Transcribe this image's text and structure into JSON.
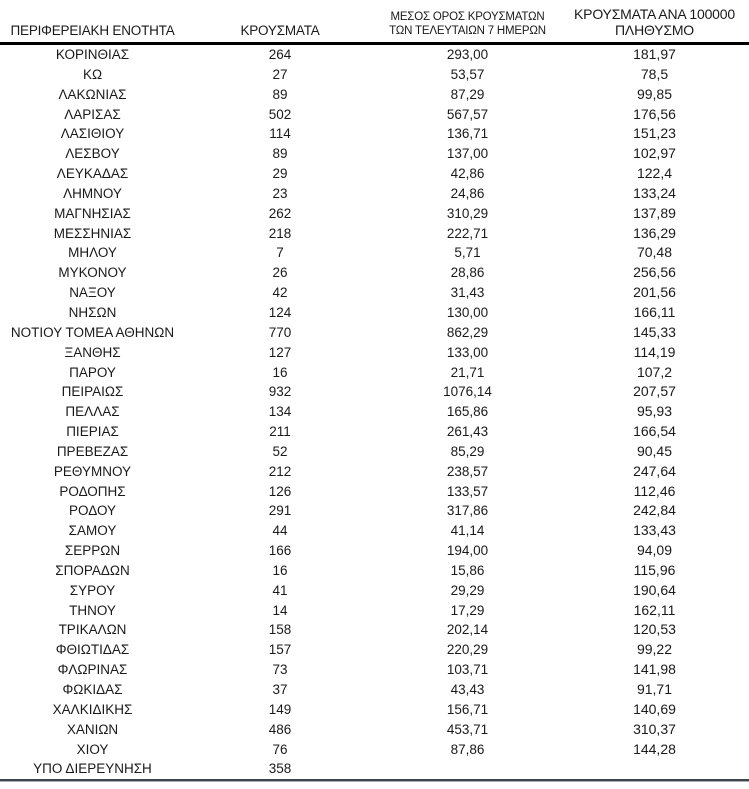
{
  "header": {
    "col1": "ΠΕΡΙΦΕΡΕΙΑΚΗ ΕΝΟΤΗΤΑ",
    "col2": "ΚΡΟΥΣΜΑΤΑ",
    "col3_line1": "ΜΕΣΟΣ ΟΡΟΣ ΚΡΟΥΣΜΑΤΩΝ",
    "col3_line2": "ΤΩΝ ΤΕΛΕΥΤΑΙΩΝ 7 ΗΜΕΡΩΝ",
    "col4_line1": "ΚΡΟΥΣΜΑΤΑ ΑΝΑ 100000",
    "col4_line2": "ΠΛΗΘΥΣΜΟ"
  },
  "chart_data": {
    "type": "table",
    "columns": [
      "ΠΕΡΙΦΕΡΕΙΑΚΗ ΕΝΟΤΗΤΑ",
      "ΚΡΟΥΣΜΑΤΑ",
      "ΜΕΣΟΣ ΟΡΟΣ ΚΡΟΥΣΜΑΤΩΝ ΤΩΝ ΤΕΛΕΥΤΑΙΩΝ 7 ΗΜΕΡΩΝ",
      "ΚΡΟΥΣΜΑΤΑ ΑΝΑ 100000 ΠΛΗΘΥΣΜΟ"
    ],
    "rows": [
      [
        "ΚΟΡΙΝΘΙΑΣ",
        "264",
        "293,00",
        "181,97"
      ],
      [
        "ΚΩ",
        "27",
        "53,57",
        "78,5"
      ],
      [
        "ΛΑΚΩΝΙΑΣ",
        "89",
        "87,29",
        "99,85"
      ],
      [
        "ΛΑΡΙΣΑΣ",
        "502",
        "567,57",
        "176,56"
      ],
      [
        "ΛΑΣΙΘΙΟΥ",
        "114",
        "136,71",
        "151,23"
      ],
      [
        "ΛΕΣΒΟΥ",
        "89",
        "137,00",
        "102,97"
      ],
      [
        "ΛΕΥΚΑΔΑΣ",
        "29",
        "42,86",
        "122,4"
      ],
      [
        "ΛΗΜΝΟΥ",
        "23",
        "24,86",
        "133,24"
      ],
      [
        "ΜΑΓΝΗΣΙΑΣ",
        "262",
        "310,29",
        "137,89"
      ],
      [
        "ΜΕΣΣΗΝΙΑΣ",
        "218",
        "222,71",
        "136,29"
      ],
      [
        "ΜΗΛΟΥ",
        "7",
        "5,71",
        "70,48"
      ],
      [
        "ΜΥΚΟΝΟΥ",
        "26",
        "28,86",
        "256,56"
      ],
      [
        "ΝΑΞΟΥ",
        "42",
        "31,43",
        "201,56"
      ],
      [
        "ΝΗΣΩΝ",
        "124",
        "130,00",
        "166,11"
      ],
      [
        "ΝΟΤΙΟΥ ΤΟΜΕΑ ΑΘΗΝΩΝ",
        "770",
        "862,29",
        "145,33"
      ],
      [
        "ΞΑΝΘΗΣ",
        "127",
        "133,00",
        "114,19"
      ],
      [
        "ΠΑΡΟΥ",
        "16",
        "21,71",
        "107,2"
      ],
      [
        "ΠΕΙΡΑΙΩΣ",
        "932",
        "1076,14",
        "207,57"
      ],
      [
        "ΠΕΛΛΑΣ",
        "134",
        "165,86",
        "95,93"
      ],
      [
        "ΠΙΕΡΙΑΣ",
        "211",
        "261,43",
        "166,54"
      ],
      [
        "ΠΡΕΒΕΖΑΣ",
        "52",
        "85,29",
        "90,45"
      ],
      [
        "ΡΕΘΥΜΝΟΥ",
        "212",
        "238,57",
        "247,64"
      ],
      [
        "ΡΟΔΟΠΗΣ",
        "126",
        "133,57",
        "112,46"
      ],
      [
        "ΡΟΔΟΥ",
        "291",
        "317,86",
        "242,84"
      ],
      [
        "ΣΑΜΟΥ",
        "44",
        "41,14",
        "133,43"
      ],
      [
        "ΣΕΡΡΩΝ",
        "166",
        "194,00",
        "94,09"
      ],
      [
        "ΣΠΟΡΑΔΩΝ",
        "16",
        "15,86",
        "115,96"
      ],
      [
        "ΣΥΡΟΥ",
        "41",
        "29,29",
        "190,64"
      ],
      [
        "ΤΗΝΟΥ",
        "14",
        "17,29",
        "162,11"
      ],
      [
        "ΤΡΙΚΑΛΩΝ",
        "158",
        "202,14",
        "120,53"
      ],
      [
        "ΦΘΙΩΤΙΔΑΣ",
        "157",
        "220,29",
        "99,22"
      ],
      [
        "ΦΛΩΡΙΝΑΣ",
        "73",
        "103,71",
        "141,98"
      ],
      [
        "ΦΩΚΙΔΑΣ",
        "37",
        "43,43",
        "91,71"
      ],
      [
        "ΧΑΛΚΙΔΙΚΗΣ",
        "149",
        "156,71",
        "140,69"
      ],
      [
        "ΧΑΝΙΩΝ",
        "486",
        "453,71",
        "310,37"
      ],
      [
        "ΧΙΟΥ",
        "76",
        "87,86",
        "144,28"
      ],
      [
        "ΥΠΟ ΔΙΕΡΕΥΝΗΣΗ",
        "358",
        "",
        ""
      ]
    ]
  },
  "colors": {
    "text": "#1a1a1a",
    "header_rule": "#000000",
    "bottom_rule_dark": "#3f444c",
    "bottom_rule_light": "#a9aeb5",
    "background": "#ffffff"
  }
}
